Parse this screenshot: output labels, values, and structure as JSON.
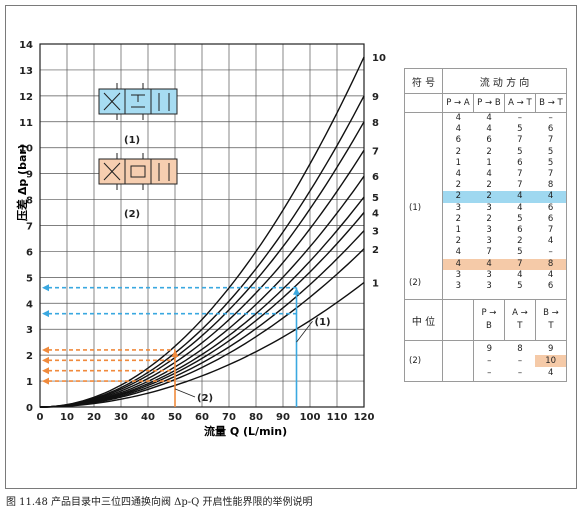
{
  "chart_data": {
    "type": "line",
    "xlabel": "流量 Q  (L/min)",
    "ylabel": "压差 Δp (bar)",
    "xlim": [
      0,
      120
    ],
    "ylim": [
      0,
      14
    ],
    "xticks": [
      0,
      10,
      20,
      30,
      40,
      50,
      60,
      70,
      80,
      90,
      100,
      110,
      120
    ],
    "yticks": [
      0,
      1,
      2,
      3,
      4,
      5,
      6,
      7,
      8,
      9,
      10,
      11,
      12,
      13,
      14
    ],
    "grid": true,
    "series": [
      {
        "name": "1",
        "x": [
          0,
          120
        ],
        "y": [
          0,
          4.8
        ]
      },
      {
        "name": "2",
        "x": [
          0,
          120
        ],
        "y": [
          0,
          6.1
        ]
      },
      {
        "name": "3",
        "x": [
          0,
          120
        ],
        "y": [
          0,
          6.8
        ]
      },
      {
        "name": "4",
        "x": [
          0,
          120
        ],
        "y": [
          0,
          7.5
        ]
      },
      {
        "name": "5",
        "x": [
          0,
          120
        ],
        "y": [
          0,
          8.1
        ]
      },
      {
        "name": "6",
        "x": [
          0,
          120
        ],
        "y": [
          0,
          8.9
        ]
      },
      {
        "name": "7",
        "x": [
          0,
          120
        ],
        "y": [
          0,
          9.9
        ]
      },
      {
        "name": "8",
        "x": [
          0,
          120
        ],
        "y": [
          0,
          11.0
        ]
      },
      {
        "name": "9",
        "x": [
          0,
          120
        ],
        "y": [
          0,
          12.0
        ]
      },
      {
        "name": "10",
        "x": [
          0,
          120
        ],
        "y": [
          0,
          13.5
        ]
      }
    ],
    "annotations": [
      {
        "text": "(1)",
        "color": "#3aa8e0",
        "x": 95,
        "y_levels": [
          4.6,
          3.6
        ]
      },
      {
        "text": "(2)",
        "color": "#f08a3c",
        "x": 50,
        "y_levels": [
          2.2,
          1.8,
          1.4,
          1.0
        ]
      }
    ]
  },
  "symbols": {
    "valve1_label": "(1)",
    "valve2_label": "(2)",
    "valve1_color": "#a7dcf2",
    "valve2_color": "#f6ceb0"
  },
  "table": {
    "header_symbol": "符 号",
    "header_flow": "流 动 方 向",
    "col_labels": [
      "P → A",
      "P → B",
      "A → T",
      "B → T"
    ],
    "rows": [
      [
        "4",
        "4",
        "–",
        "–"
      ],
      [
        "4",
        "4",
        "5",
        "6"
      ],
      [
        "6",
        "6",
        "7",
        "7"
      ],
      [
        "2",
        "2",
        "5",
        "5"
      ],
      [
        "1",
        "1",
        "6",
        "5"
      ],
      [
        "4",
        "4",
        "7",
        "7"
      ],
      [
        "2",
        "2",
        "7",
        "8"
      ],
      [
        "2",
        "2",
        "4",
        "4"
      ],
      [
        "3",
        "3",
        "4",
        "6"
      ],
      [
        "2",
        "2",
        "5",
        "6"
      ],
      [
        "1",
        "3",
        "6",
        "7"
      ],
      [
        "2",
        "3",
        "2",
        "4"
      ],
      [
        "4",
        "7",
        "5",
        "–"
      ],
      [
        "4",
        "4",
        "7",
        "8"
      ],
      [
        "3",
        "3",
        "4",
        "4"
      ],
      [
        "3",
        "3",
        "5",
        "6"
      ]
    ],
    "sym1": "(1)",
    "sym2": "(2)",
    "mid_label": "中 位",
    "mid_cols": [
      "P →",
      "A →",
      "B →"
    ],
    "mid_cols2": [
      "B",
      "T",
      "T"
    ],
    "mid_rows": [
      [
        "9",
        "8",
        "9"
      ],
      [
        "–",
        "–",
        "10"
      ],
      [
        "–",
        "–",
        "4"
      ]
    ],
    "mid_sym": "(2)"
  },
  "caption": "图 11.48    产品目录中三位四通换向阀 Δp-Q 开启性能界限的举例说明"
}
